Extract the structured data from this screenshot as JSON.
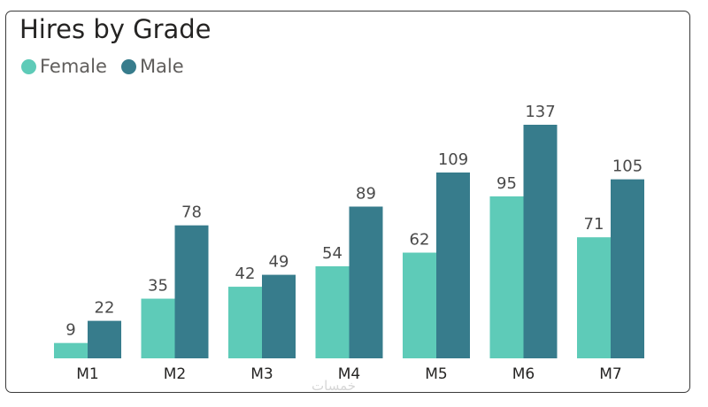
{
  "title": "Hires by Grade",
  "legend": [
    {
      "name": "Female",
      "color": "#5ecbb8"
    },
    {
      "name": "Male",
      "color": "#377c8c"
    }
  ],
  "watermark": "خمسات",
  "chart_data": {
    "type": "bar",
    "title": "Hires by Grade",
    "categories": [
      "M1",
      "M2",
      "M3",
      "M4",
      "M5",
      "M6",
      "M7"
    ],
    "series": [
      {
        "name": "Female",
        "color": "#5ecbb8",
        "values": [
          9,
          35,
          42,
          54,
          62,
          95,
          71
        ]
      },
      {
        "name": "Male",
        "color": "#377c8c",
        "values": [
          22,
          78,
          49,
          89,
          109,
          137,
          105
        ]
      }
    ],
    "xlabel": "",
    "ylabel": "",
    "ylim": [
      0,
      137
    ],
    "grid": false,
    "legend_position": "top-left",
    "data_labels": true
  }
}
